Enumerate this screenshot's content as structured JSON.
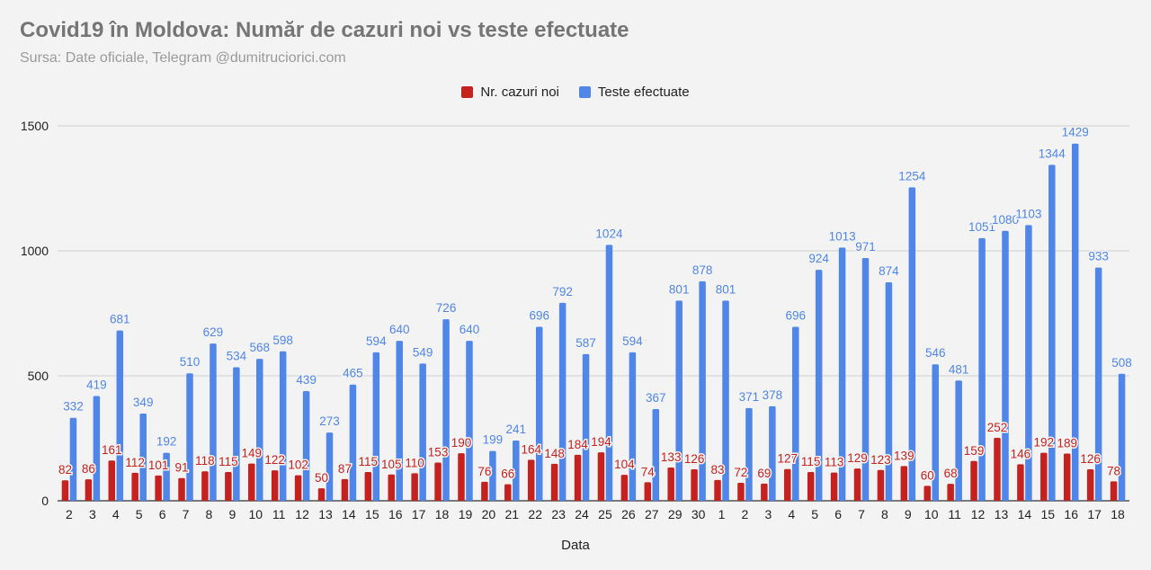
{
  "title": "Covid19 în Moldova: Număr de cazuri noi vs teste efectuate",
  "subtitle": "Sursa: Date oficiale, Telegram @dumitruciorici.com",
  "colors": {
    "cases": "#c5221f",
    "tests": "#4f86e8",
    "grid": "#cfcfcf",
    "background": "#f3f3f3"
  },
  "chart_data": {
    "type": "bar",
    "title": "Covid19 în Moldova: Număr de cazuri noi vs teste efectuate",
    "subtitle": "Sursa: Date oficiale, Telegram @dumitruciorici.com",
    "xlabel": "Data",
    "ylabel": "",
    "ylim": [
      0,
      1500
    ],
    "yticks": [
      0,
      500,
      1000,
      1500
    ],
    "grid": true,
    "legend_position": "top-center",
    "categories": [
      "2",
      "3",
      "4",
      "5",
      "6",
      "7",
      "8",
      "9",
      "10",
      "11",
      "12",
      "13",
      "14",
      "15",
      "16",
      "17",
      "18",
      "19",
      "20",
      "21",
      "22",
      "23",
      "24",
      "25",
      "26",
      "27",
      "29",
      "30",
      "1",
      "2",
      "3",
      "4",
      "5",
      "6",
      "7",
      "8",
      "9",
      "10",
      "11",
      "12",
      "13",
      "14",
      "15",
      "16",
      "17",
      "18"
    ],
    "series": [
      {
        "name": "Nr. cazuri noi",
        "color": "#c5221f",
        "values": [
          82,
          86,
          161,
          112,
          101,
          91,
          118,
          115,
          149,
          122,
          102,
          50,
          87,
          115,
          105,
          110,
          153,
          190,
          76,
          66,
          164,
          148,
          184,
          194,
          104,
          74,
          133,
          126,
          83,
          72,
          69,
          127,
          115,
          113,
          129,
          123,
          139,
          60,
          68,
          159,
          252,
          146,
          192,
          189,
          126,
          78
        ]
      },
      {
        "name": "Teste efectuate",
        "color": "#4f86e8",
        "values": [
          332,
          419,
          681,
          349,
          192,
          510,
          629,
          534,
          568,
          598,
          439,
          273,
          465,
          594,
          640,
          549,
          726,
          640,
          199,
          241,
          696,
          792,
          587,
          1024,
          594,
          367,
          801,
          878,
          801,
          371,
          378,
          696,
          924,
          1013,
          971,
          874,
          1254,
          546,
          481,
          1051,
          1080,
          1103,
          1344,
          1429,
          933,
          508
        ]
      }
    ]
  }
}
